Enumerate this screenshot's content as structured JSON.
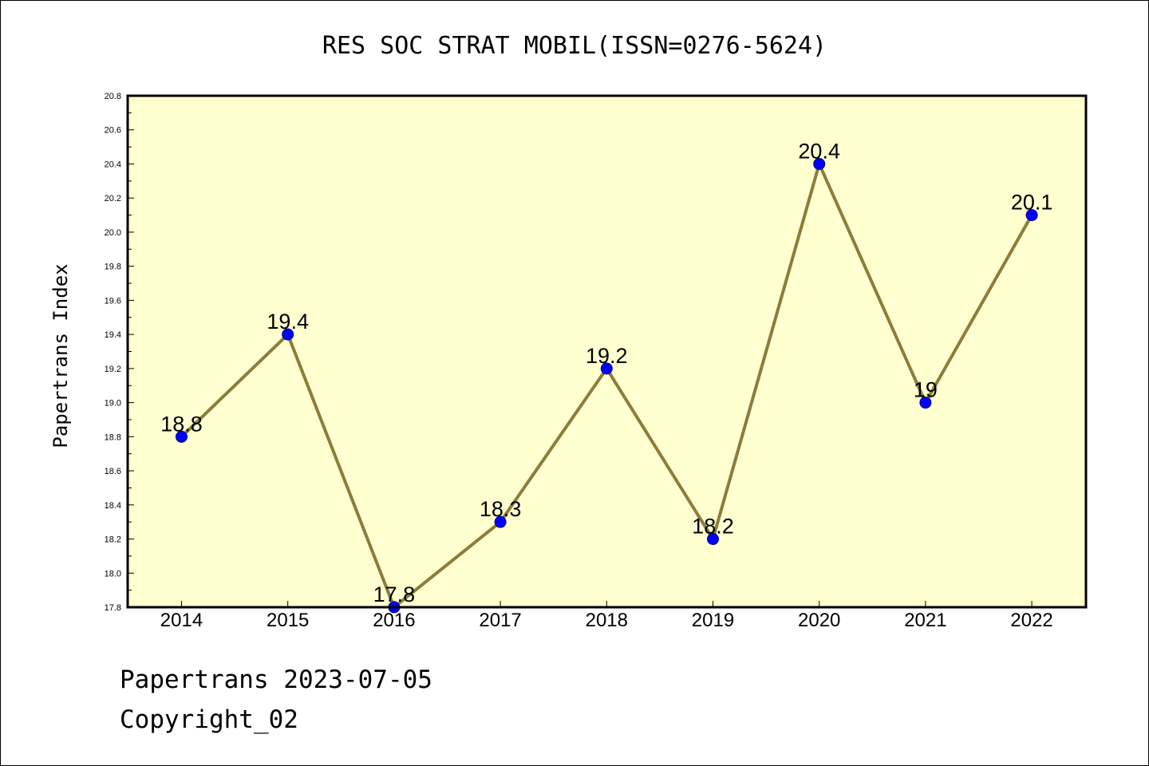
{
  "chart_data": {
    "type": "line",
    "title": "RES SOC STRAT MOBIL(ISSN=0276-5624)",
    "xlabel": "",
    "ylabel": "Papertrans Index",
    "categories": [
      "2014",
      "2015",
      "2016",
      "2017",
      "2018",
      "2019",
      "2020",
      "2021",
      "2022"
    ],
    "series": [
      {
        "values": [
          18.8,
          19.4,
          17.8,
          18.3,
          19.2,
          18.2,
          20.4,
          19.0,
          20.1
        ],
        "labels": [
          "18.8",
          "19.4",
          "17.8",
          "18.3",
          "19.2",
          "18.2",
          "20.4",
          "19",
          "20.1"
        ]
      }
    ],
    "ylim": [
      17.8,
      20.8
    ],
    "yticks": [
      "17.8",
      "18.0",
      "18.2",
      "18.4",
      "18.6",
      "18.8",
      "19.0",
      "19.2",
      "19.4",
      "19.6",
      "19.8",
      "20.0",
      "20.2",
      "20.4",
      "20.6",
      "20.8"
    ],
    "grid": false,
    "legend": "none",
    "colors": {
      "plot_background": "#ffffd0",
      "line": "#8b7d3a",
      "marker_fill": "#0000ff",
      "marker_edge": "#000080"
    }
  },
  "footer": {
    "line1": "Papertrans 2023-07-05",
    "line2": "Copyright_02"
  }
}
